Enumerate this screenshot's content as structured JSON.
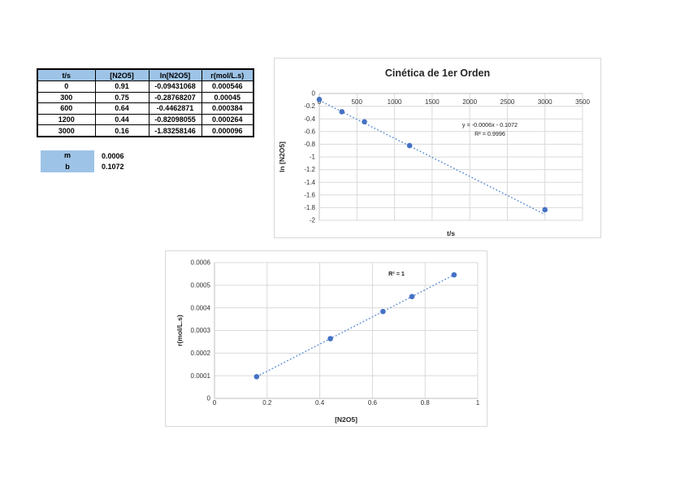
{
  "data_table": {
    "headers": [
      "t/s",
      "[N2O5]",
      "ln[N2O5]",
      "r(mol/L.s)"
    ],
    "rows": [
      [
        "0",
        "0.91",
        "-0.09431068",
        "0.000546"
      ],
      [
        "300",
        "0.75",
        "-0.28768207",
        "0.00045"
      ],
      [
        "600",
        "0.64",
        "-0.4462871",
        "0.000384"
      ],
      [
        "1200",
        "0.44",
        "-0.82098055",
        "0.000264"
      ],
      [
        "3000",
        "0.16",
        "-1.83258146",
        "0.000096"
      ]
    ]
  },
  "fit_params": {
    "label_fill": "#9DC3E6",
    "rows": [
      {
        "label": "m",
        "value": "0.0006"
      },
      {
        "label": "b",
        "value": "0.1072"
      }
    ]
  },
  "colors": {
    "marker": "#4472C4",
    "trendline": "#5B8BD5",
    "gridline": "#D9D9D9",
    "axis_line": "#BFBFBF",
    "tick_text": "#333333",
    "title_text": "#262626",
    "annotation_text": "#1a1a1a",
    "header_fill": "#9DC3E6",
    "chart_border": "#D9D9D9"
  },
  "chart_data": [
    {
      "type": "scatter",
      "title": "Cinética de 1er Orden",
      "xlabel": "t/s",
      "ylabel": "ln [N2O5]",
      "x": [
        0,
        300,
        600,
        1200,
        3000
      ],
      "y": [
        -0.09431068,
        -0.28768207,
        -0.4462871,
        -0.82098055,
        -1.83258146
      ],
      "xlim": [
        0,
        3500
      ],
      "ylim": [
        -2,
        0
      ],
      "xticks": [
        "0",
        "500",
        "1000",
        "1500",
        "2000",
        "2500",
        "3000",
        "3500"
      ],
      "yticks": [
        "0",
        "-0.2",
        "-0.4",
        "-0.6",
        "-0.8",
        "-1",
        "-1.2",
        "-1.4",
        "-1.6",
        "-1.8",
        "-2"
      ],
      "grid": true,
      "legend": "none",
      "trendline": {
        "slope": -0.0006,
        "intercept": -0.1072,
        "x_start": 0,
        "x_end": 3000
      },
      "annotations": [
        "y = -0.0006x - 0.1072",
        "R² = 0.9996"
      ]
    },
    {
      "type": "scatter",
      "title": "",
      "xlabel": "[N2O5]",
      "ylabel": "r(mol/L.s)",
      "x": [
        0.16,
        0.44,
        0.64,
        0.75,
        0.91
      ],
      "y": [
        9.6e-05,
        0.000264,
        0.000384,
        0.00045,
        0.000546
      ],
      "xlim": [
        0,
        1
      ],
      "ylim": [
        0,
        0.0006
      ],
      "xticks": [
        "0",
        "0.2",
        "0.4",
        "0.6",
        "0.8",
        "1"
      ],
      "yticks": [
        "0",
        "0.0001",
        "0.0002",
        "0.0003",
        "0.0004",
        "0.0005",
        "0.0006"
      ],
      "grid": true,
      "legend": "none",
      "trendline": {
        "slope": 0.0006,
        "intercept": 0,
        "x_start": 0.16,
        "x_end": 0.91
      },
      "annotations": [
        "R² = 1"
      ]
    }
  ]
}
